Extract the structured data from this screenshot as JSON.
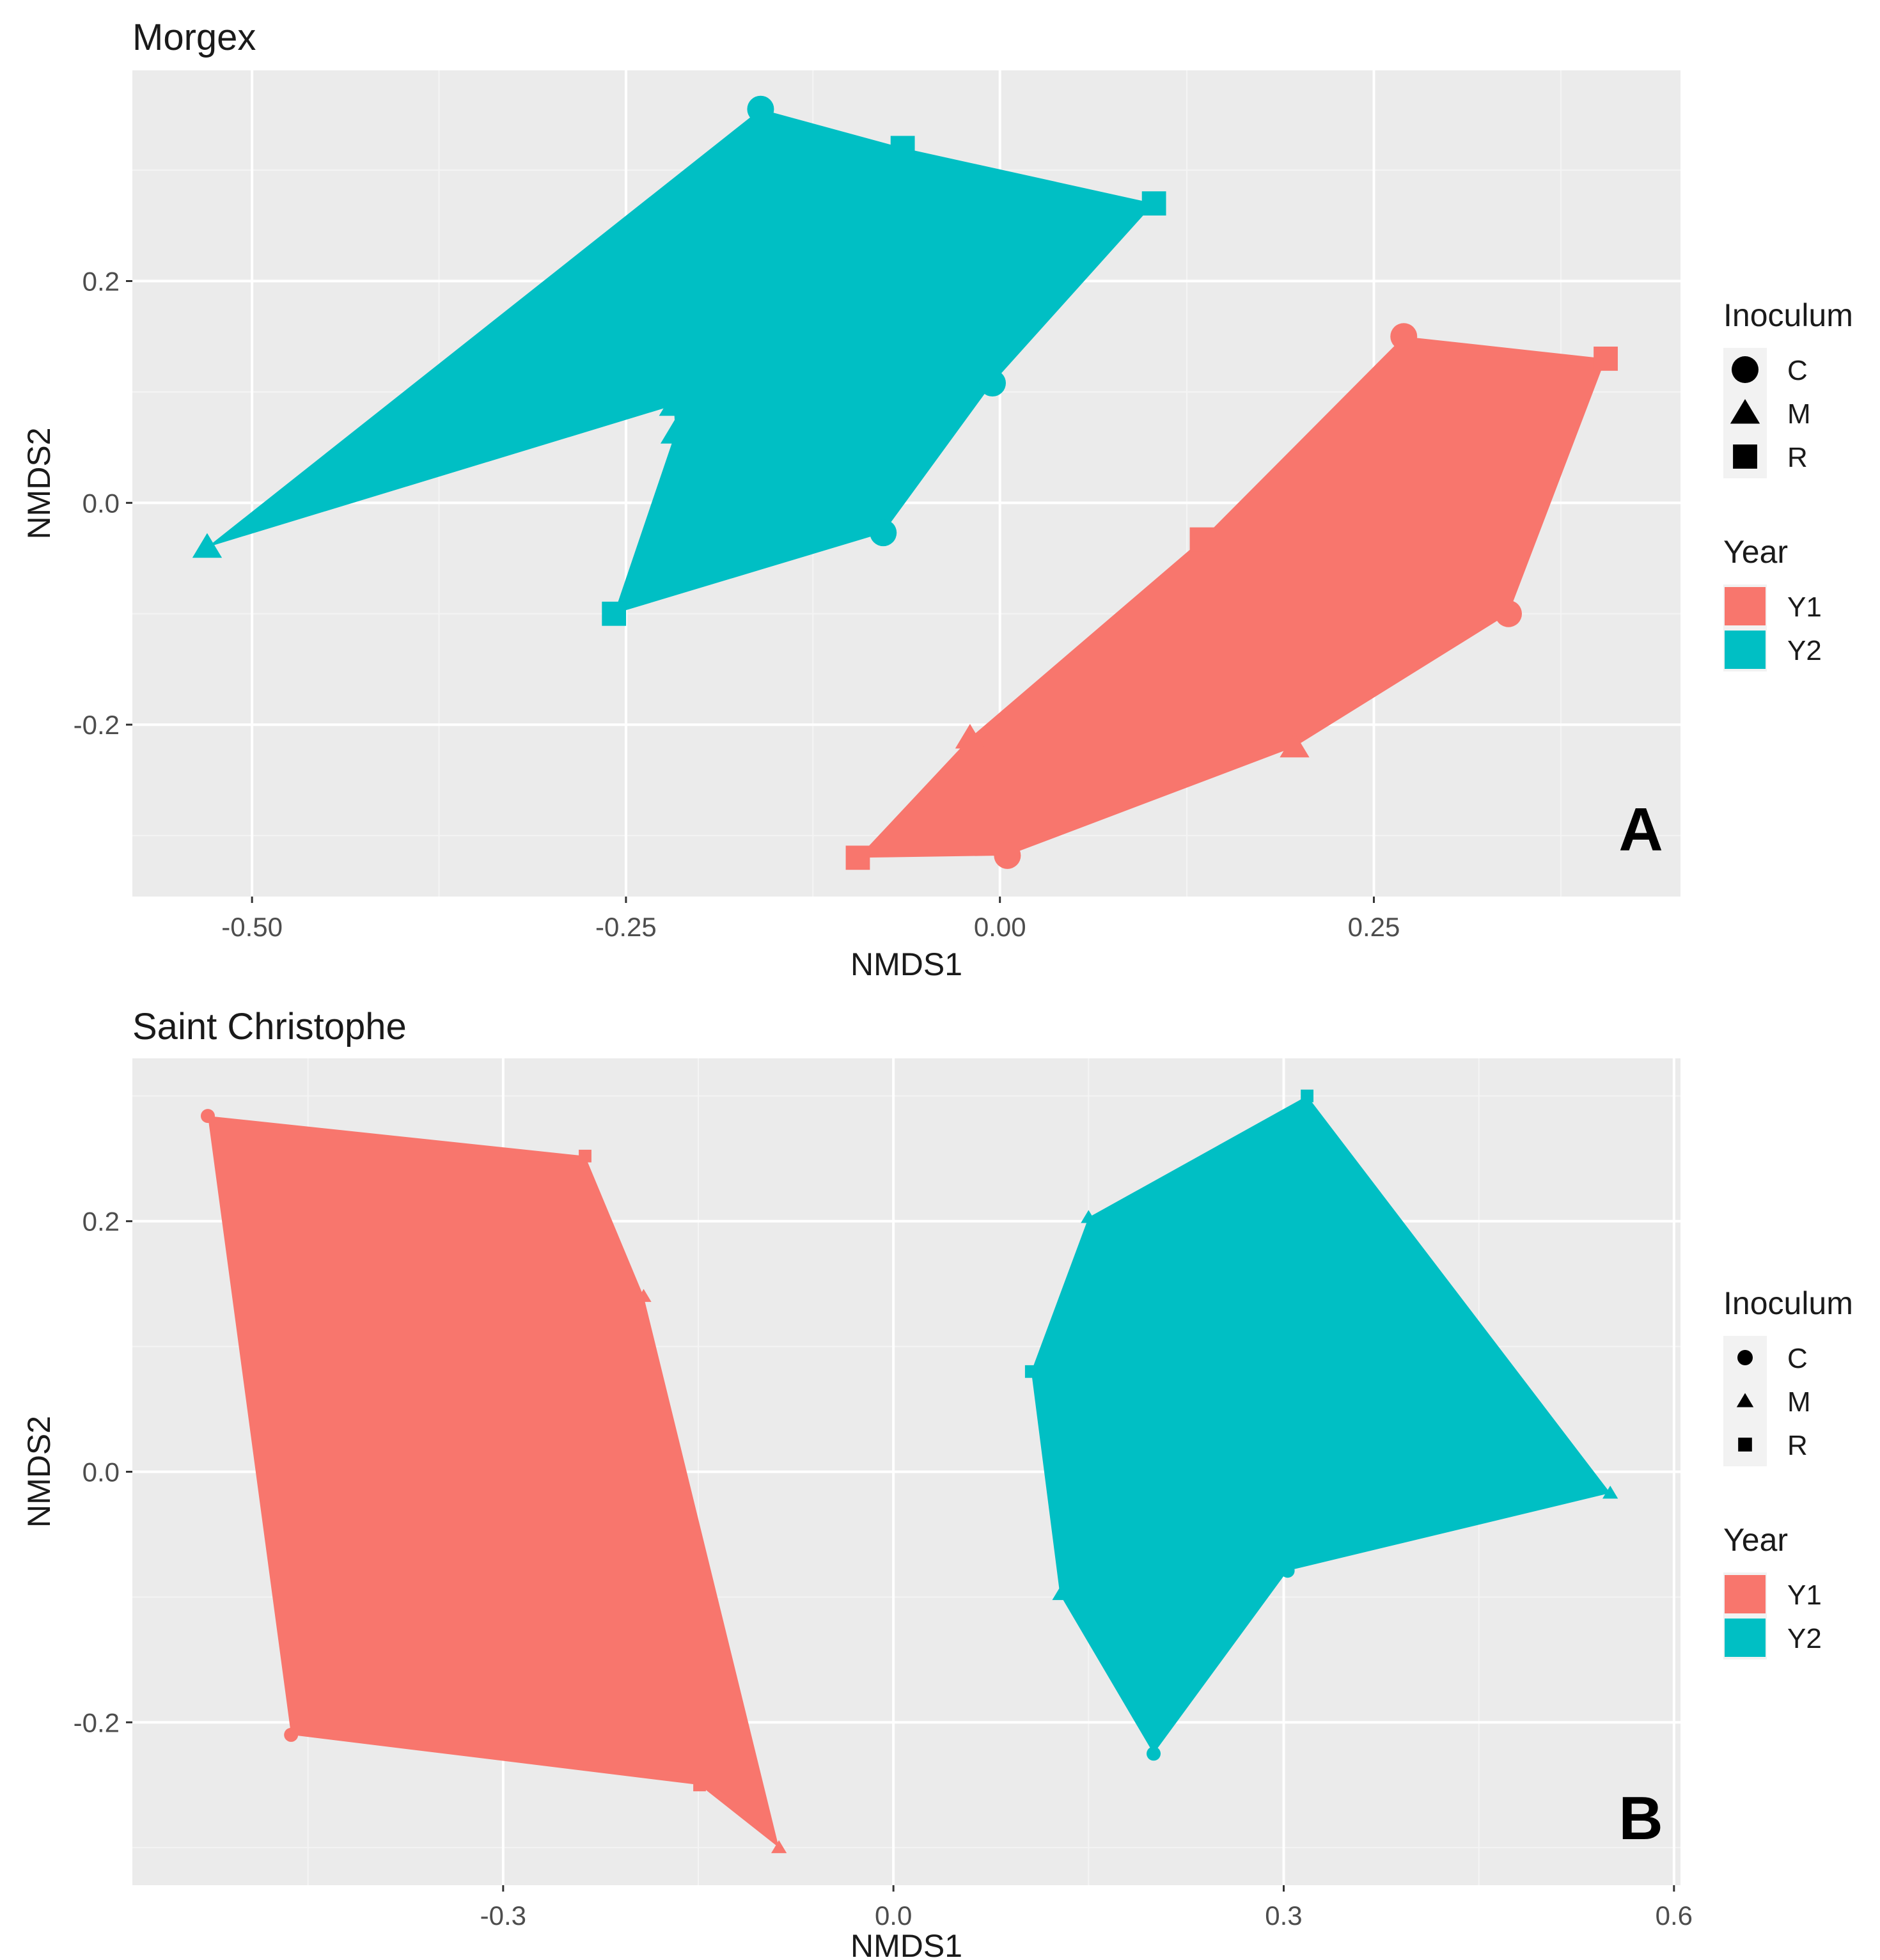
{
  "chart_data": [
    {
      "type": "scatter",
      "title": "Morgex",
      "panel_label": "A",
      "xlabel": "NMDS1",
      "ylabel": "NMDS2",
      "xlim": [
        -0.58,
        0.455
      ],
      "ylim": [
        -0.355,
        0.39
      ],
      "x_ticks": [
        -0.5,
        -0.25,
        0.0,
        0.25
      ],
      "x_tick_labels": [
        "-0.50",
        "-0.25",
        "0.00",
        "0.25"
      ],
      "y_ticks": [
        -0.2,
        0.0,
        0.2
      ],
      "y_tick_labels": [
        "-0.2",
        "0.0",
        "0.2"
      ],
      "marker_size": "large",
      "legend": {
        "position": "right",
        "shape_title": "Inoculum",
        "shape_entries": [
          "C",
          "M",
          "R"
        ],
        "color_title": "Year",
        "color_entries": [
          "Y1",
          "Y2"
        ]
      },
      "colors": {
        "Y1": "#f8766d",
        "Y2": "#00bfc4"
      },
      "series": [
        {
          "name": "Y2",
          "points": [
            {
              "x": -0.16,
              "y": 0.355,
              "shape": "C"
            },
            {
              "x": -0.065,
              "y": 0.32,
              "shape": "R"
            },
            {
              "x": 0.103,
              "y": 0.27,
              "shape": "R"
            },
            {
              "x": -0.005,
              "y": 0.108,
              "shape": "C"
            },
            {
              "x": -0.078,
              "y": -0.027,
              "shape": "C"
            },
            {
              "x": -0.258,
              "y": -0.1,
              "shape": "R"
            },
            {
              "x": -0.217,
              "y": 0.063,
              "shape": "M"
            },
            {
              "x": -0.218,
              "y": 0.088,
              "shape": "M"
            },
            {
              "x": -0.53,
              "y": -0.04,
              "shape": "M"
            }
          ]
        },
        {
          "name": "Y1",
          "points": [
            {
              "x": 0.27,
              "y": 0.15,
              "shape": "C"
            },
            {
              "x": 0.405,
              "y": 0.13,
              "shape": "R"
            },
            {
              "x": 0.34,
              "y": -0.1,
              "shape": "C"
            },
            {
              "x": 0.197,
              "y": -0.22,
              "shape": "M"
            },
            {
              "x": 0.005,
              "y": -0.318,
              "shape": "C"
            },
            {
              "x": -0.095,
              "y": -0.32,
              "shape": "R"
            },
            {
              "x": -0.02,
              "y": -0.212,
              "shape": "M"
            },
            {
              "x": 0.135,
              "y": -0.033,
              "shape": "R"
            }
          ]
        }
      ]
    },
    {
      "type": "scatter",
      "title": "Saint Christophe",
      "panel_label": "B",
      "xlabel": "NMDS1",
      "ylabel": "NMDS2",
      "xlim": [
        -0.585,
        0.605
      ],
      "ylim": [
        -0.33,
        0.33
      ],
      "x_ticks": [
        -0.3,
        0.0,
        0.3,
        0.6
      ],
      "x_tick_labels": [
        "-0.3",
        "0.0",
        "0.3",
        "0.6"
      ],
      "y_ticks": [
        -0.2,
        0.0,
        0.2
      ],
      "y_tick_labels": [
        "-0.2",
        "0.0",
        "0.2"
      ],
      "marker_size": "small",
      "legend": {
        "position": "right",
        "shape_title": "Inoculum",
        "shape_entries": [
          "C",
          "M",
          "R"
        ],
        "color_title": "Year",
        "color_entries": [
          "Y1",
          "Y2"
        ]
      },
      "colors": {
        "Y1": "#f8766d",
        "Y2": "#00bfc4"
      },
      "series": [
        {
          "name": "Y1",
          "points": [
            {
              "x": -0.527,
              "y": 0.284,
              "shape": "C"
            },
            {
              "x": -0.237,
              "y": 0.252,
              "shape": "R"
            },
            {
              "x": -0.192,
              "y": 0.14,
              "shape": "M"
            },
            {
              "x": -0.088,
              "y": -0.3,
              "shape": "M"
            },
            {
              "x": -0.149,
              "y": -0.25,
              "shape": "R"
            },
            {
              "x": -0.463,
              "y": -0.21,
              "shape": "C"
            }
          ]
        },
        {
          "name": "Y2",
          "points": [
            {
              "x": 0.318,
              "y": 0.3,
              "shape": "R"
            },
            {
              "x": 0.551,
              "y": -0.017,
              "shape": "M"
            },
            {
              "x": 0.303,
              "y": -0.079,
              "shape": "C"
            },
            {
              "x": 0.2,
              "y": -0.225,
              "shape": "C"
            },
            {
              "x": 0.128,
              "y": -0.098,
              "shape": "M"
            },
            {
              "x": 0.106,
              "y": 0.08,
              "shape": "R"
            },
            {
              "x": 0.15,
              "y": 0.203,
              "shape": "M"
            }
          ]
        }
      ]
    }
  ]
}
